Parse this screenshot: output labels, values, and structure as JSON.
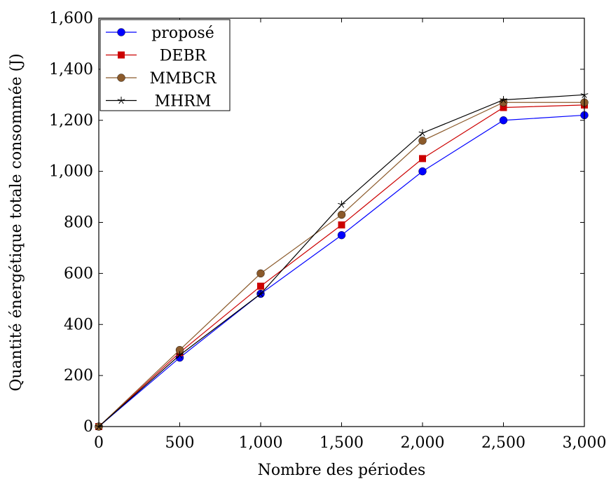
{
  "chart_data": {
    "type": "line",
    "title": "",
    "xlabel": "Nombre des périodes",
    "ylabel": "Quantité énergétique totale consommée (J)",
    "xlim": [
      0,
      3000
    ],
    "ylim": [
      0,
      1600
    ],
    "x_ticks": [
      "0",
      "500",
      "1,000",
      "1,500",
      "2,000",
      "2,500",
      "3,000"
    ],
    "y_ticks": [
      "0",
      "200",
      "400",
      "600",
      "800",
      "1,000",
      "1,200",
      "1,400",
      "1,600"
    ],
    "x_tick_values": [
      0,
      500,
      1000,
      1500,
      2000,
      2500,
      3000
    ],
    "y_tick_values": [
      0,
      200,
      400,
      600,
      800,
      1000,
      1200,
      1400,
      1600
    ],
    "grid": false,
    "legend_position": "top-left",
    "x": [
      0,
      500,
      1000,
      1500,
      2000,
      2500,
      3000
    ],
    "series": [
      {
        "name": "proposé",
        "values": [
          0,
          270,
          520,
          750,
          1000,
          1200,
          1220
        ],
        "color": "#0000ff",
        "marker": "circle"
      },
      {
        "name": "DEBR",
        "values": [
          0,
          290,
          550,
          790,
          1050,
          1250,
          1260
        ],
        "color": "#cc0000",
        "marker": "square"
      },
      {
        "name": "MMBCR",
        "values": [
          0,
          300,
          600,
          830,
          1120,
          1270,
          1270
        ],
        "color": "#8b5a2b",
        "marker": "circle"
      },
      {
        "name": "MHRM",
        "values": [
          0,
          280,
          520,
          870,
          1150,
          1280,
          1300
        ],
        "color": "#000000",
        "marker": "star"
      }
    ]
  }
}
